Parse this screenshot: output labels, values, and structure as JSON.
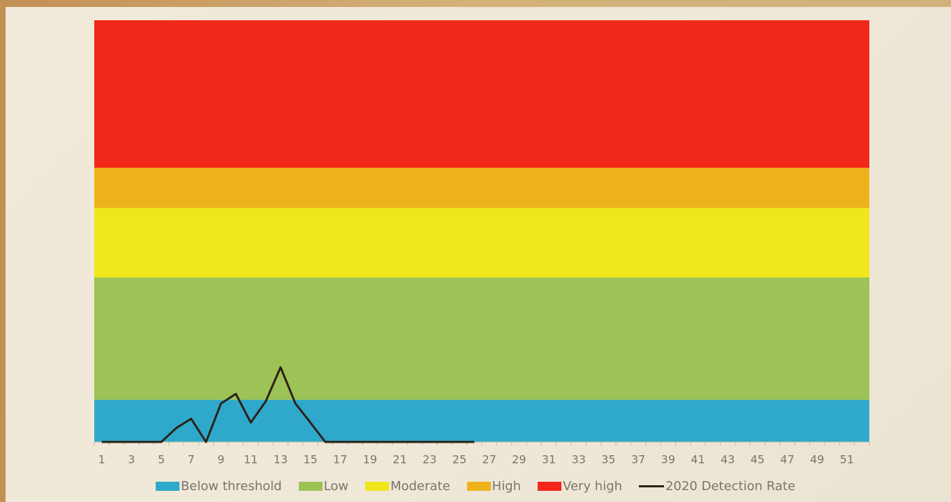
{
  "chart_data": {
    "type": "line",
    "categories": [
      1,
      null,
      3,
      null,
      5,
      null,
      7,
      null,
      9,
      null,
      11,
      null,
      13,
      null,
      15,
      null,
      17,
      null,
      19,
      null,
      21,
      null,
      23,
      null,
      25,
      null,
      27,
      null,
      29,
      null,
      31,
      null,
      33,
      null,
      35,
      null,
      37,
      null,
      39,
      null,
      41,
      null,
      43,
      null,
      45,
      null,
      47,
      null,
      49,
      null,
      51,
      null
    ],
    "bands": [
      {
        "name": "Below threshold",
        "color": "#2ea9cc",
        "value": 1
      },
      {
        "name": "Low",
        "color": "#9dc255",
        "value": 2.9
      },
      {
        "name": "Moderate",
        "color": "#efe719",
        "value": 1.65
      },
      {
        "name": "High",
        "color": "#eeb31a",
        "value": 0.95
      },
      {
        "name": "Very high",
        "color": "#f12719",
        "value": 3.5
      }
    ],
    "series": [
      {
        "name": "2020 Detection Rate",
        "color": "#2b2116",
        "values": [
          0,
          0,
          0,
          0,
          0,
          0.33,
          0.55,
          0,
          0.91,
          1.14,
          0.46,
          0.96,
          1.77,
          0.91,
          0.46,
          0,
          0,
          0,
          0,
          0,
          0,
          0,
          0,
          0,
          0,
          0,
          null,
          null,
          null,
          null,
          null,
          null,
          null,
          null,
          null,
          null,
          null,
          null,
          null,
          null,
          null,
          null,
          null,
          null,
          null,
          null,
          null,
          null,
          null,
          null,
          null,
          null
        ]
      }
    ],
    "ylim": [
      0,
      10
    ]
  }
}
